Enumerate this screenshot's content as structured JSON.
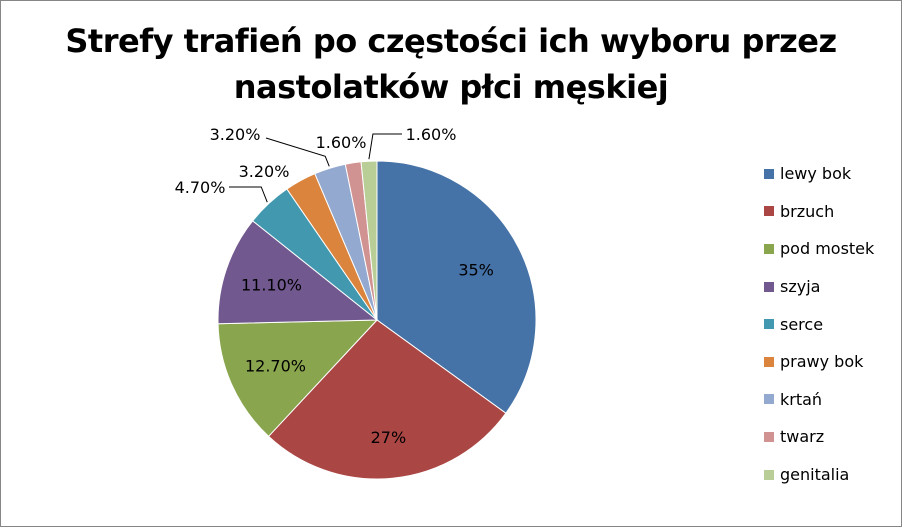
{
  "chart_data": {
    "type": "pie",
    "title": [
      "Strefy trafień po częstości ich wyboru przez",
      "nastolatków płci męskiej"
    ],
    "categories": [
      "lewy bok",
      "brzuch",
      "pod mostek",
      "szyja",
      "serce",
      "prawy bok",
      "krtań",
      "twarz",
      "genitalia"
    ],
    "values": [
      35,
      27,
      12.7,
      11.1,
      4.7,
      3.2,
      3.2,
      1.6,
      1.6
    ],
    "labels": [
      "35%",
      "27%",
      "12.70%",
      "11.10%",
      "4.70%",
      "3.20%",
      "3.20%",
      "1.60%",
      "1.60%"
    ],
    "colors": [
      "#4572a7",
      "#aa4643",
      "#89a54e",
      "#71588f",
      "#4198af",
      "#db843d",
      "#93a9cf",
      "#d19392",
      "#b9cd96"
    ],
    "legend_position": "right"
  }
}
